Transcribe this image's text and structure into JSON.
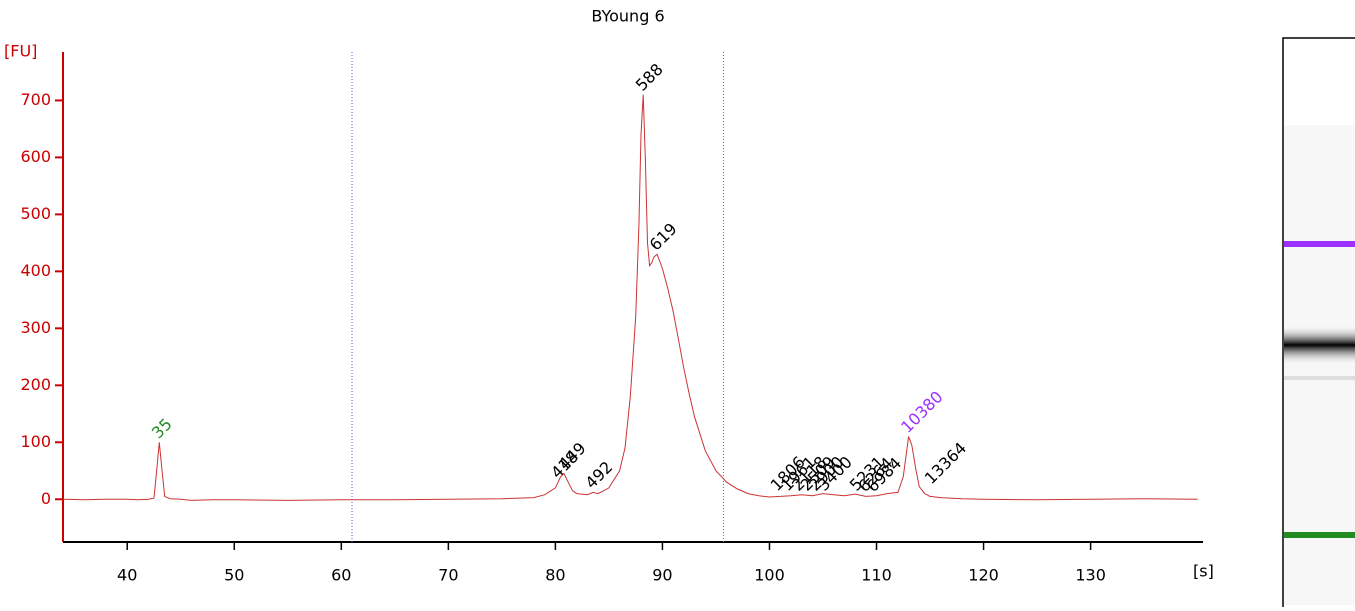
{
  "chart_data": {
    "type": "line",
    "title": "BYoung 6",
    "x_label": "[s]",
    "y_label": "[FU]",
    "x": [
      34,
      36,
      38,
      40,
      41,
      42,
      42.5,
      42.8,
      43,
      43.2,
      43.5,
      44,
      45,
      46,
      48,
      50,
      55,
      60,
      65,
      70,
      75,
      78,
      79,
      80,
      80.5,
      80.8,
      81.2,
      81.6,
      82,
      83,
      83.5,
      84,
      85,
      86,
      86.5,
      87,
      87.5,
      87.8,
      88,
      88.2,
      88.4,
      88.6,
      88.8,
      89,
      89.2,
      89.5,
      90,
      90.5,
      91,
      91.5,
      92,
      92.5,
      93,
      93.5,
      94,
      95,
      96,
      97,
      98,
      99,
      100,
      101,
      102,
      103,
      104,
      105,
      106,
      107,
      108,
      109,
      110,
      111,
      112,
      112.5,
      113,
      113.3,
      113.7,
      114,
      114.5,
      115,
      116,
      118,
      120,
      125,
      130,
      135,
      140
    ],
    "series": [
      {
        "name": "BYoung 6",
        "color": "#cc3333",
        "values": [
          0,
          -1,
          0,
          0,
          -1,
          0,
          2,
          60,
          100,
          60,
          5,
          1,
          0,
          -2,
          -1,
          -1,
          -2,
          -1,
          -1,
          0,
          1,
          3,
          8,
          20,
          40,
          45,
          30,
          15,
          10,
          8,
          12,
          10,
          20,
          50,
          90,
          180,
          320,
          480,
          640,
          710,
          600,
          450,
          410,
          415,
          425,
          430,
          405,
          370,
          330,
          280,
          230,
          185,
          145,
          115,
          85,
          50,
          30,
          18,
          10,
          6,
          4,
          5,
          6,
          8,
          6,
          10,
          8,
          6,
          9,
          5,
          6,
          10,
          12,
          40,
          110,
          95,
          50,
          22,
          10,
          5,
          3,
          1,
          0,
          -1,
          0,
          1,
          0
        ]
      }
    ],
    "peaks": [
      {
        "label": "35",
        "x": 43,
        "y": 100,
        "color": "#228b22"
      },
      {
        "label": "418",
        "x": 80.3,
        "y": 30,
        "color": "#000000"
      },
      {
        "label": "449",
        "x": 81,
        "y": 45,
        "color": "#000000"
      },
      {
        "label": "492",
        "x": 83.5,
        "y": 12,
        "color": "#000000"
      },
      {
        "label": "588",
        "x": 88.2,
        "y": 710,
        "color": "#000000"
      },
      {
        "label": "619",
        "x": 89.5,
        "y": 430,
        "color": "#000000"
      },
      {
        "label": "1806",
        "x": 100.8,
        "y": 8,
        "color": "#000000"
      },
      {
        "label": "1961",
        "x": 101.8,
        "y": 8,
        "color": "#000000"
      },
      {
        "label": "2118",
        "x": 102.8,
        "y": 8,
        "color": "#000000"
      },
      {
        "label": "2509",
        "x": 103.6,
        "y": 8,
        "color": "#000000"
      },
      {
        "label": "2900",
        "x": 104.4,
        "y": 8,
        "color": "#000000"
      },
      {
        "label": "3400",
        "x": 105.2,
        "y": 8,
        "color": "#000000"
      },
      {
        "label": "5231",
        "x": 108.2,
        "y": 8,
        "color": "#000000"
      },
      {
        "label": "6264",
        "x": 109,
        "y": 6,
        "color": "#000000"
      },
      {
        "label": "6984",
        "x": 109.8,
        "y": 6,
        "color": "#000000"
      },
      {
        "label": "10380",
        "x": 113,
        "y": 110,
        "color": "#9b30ff"
      },
      {
        "label": "13364",
        "x": 115.2,
        "y": 20,
        "color": "#000000"
      }
    ],
    "markers_x": [
      61,
      95.7
    ],
    "marker_color": "#6666cc",
    "axis_color": "#cc0000",
    "xlim": [
      34,
      140.5
    ],
    "ylim": [
      -75,
      785
    ],
    "xticks": [
      40,
      50,
      60,
      70,
      80,
      90,
      100,
      110,
      120,
      130
    ],
    "yticks": [
      0,
      100,
      200,
      300,
      400,
      500,
      600,
      700
    ]
  }
}
